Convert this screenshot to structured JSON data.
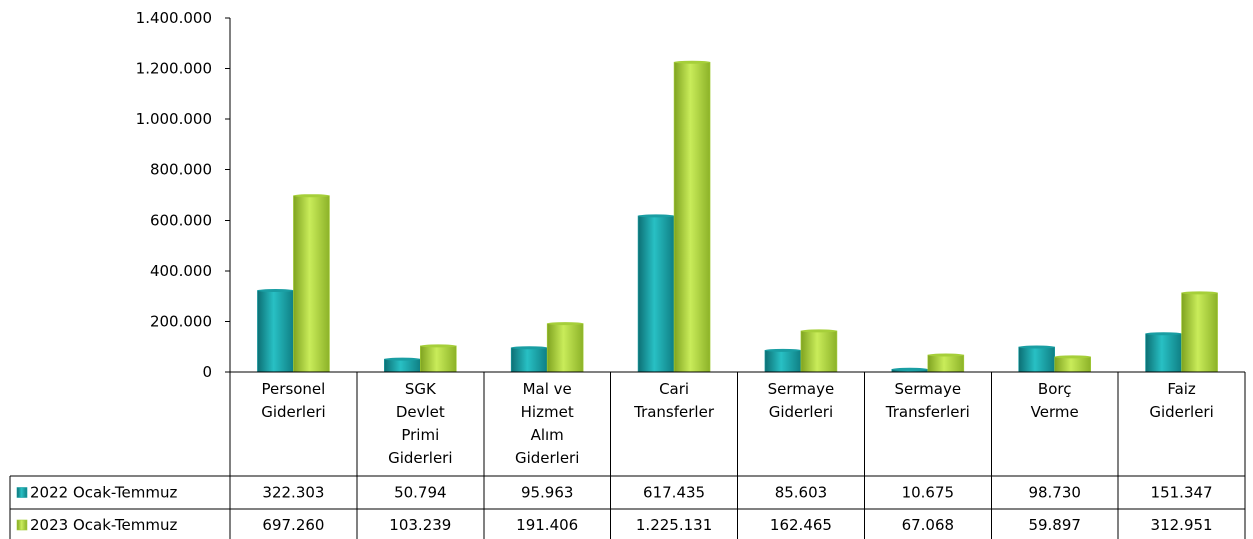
{
  "chart_data": {
    "type": "bar",
    "categories": [
      [
        "Personel",
        "Giderleri"
      ],
      [
        "SGK",
        "Devlet",
        "Primi",
        "Giderleri"
      ],
      [
        "Mal ve",
        "Hizmet",
        "Alım",
        "Giderleri"
      ],
      [
        "Cari",
        "Transferler"
      ],
      [
        "Sermaye",
        "Giderleri"
      ],
      [
        "Sermaye",
        "Transferleri"
      ],
      [
        "Borç",
        "Verme"
      ],
      [
        "Faiz",
        "Giderleri"
      ]
    ],
    "series": [
      {
        "name": "2022 Ocak-Temmuz",
        "color": "#1a9ea3",
        "values": [
          322303,
          50794,
          95963,
          617435,
          85603,
          10675,
          98730,
          151347
        ],
        "labels": [
          "322.303",
          "50.794",
          "95.963",
          "617.435",
          "85.603",
          "10.675",
          "98.730",
          "151.347"
        ]
      },
      {
        "name": "2023 Ocak-Temmuz",
        "color": "#a6cf3a",
        "values": [
          697260,
          103239,
          191406,
          1225131,
          162465,
          67068,
          59897,
          312951
        ],
        "labels": [
          "697.260",
          "103.239",
          "191.406",
          "1.225.131",
          "162.465",
          "67.068",
          "59.897",
          "312.951"
        ]
      }
    ],
    "y_ticks": [
      "0",
      "200.000",
      "400.000",
      "600.000",
      "800.000",
      "1.000.000",
      "1.200.000",
      "1.400.000"
    ],
    "ylim": [
      0,
      1400000
    ],
    "data_table": true,
    "grid": false
  }
}
